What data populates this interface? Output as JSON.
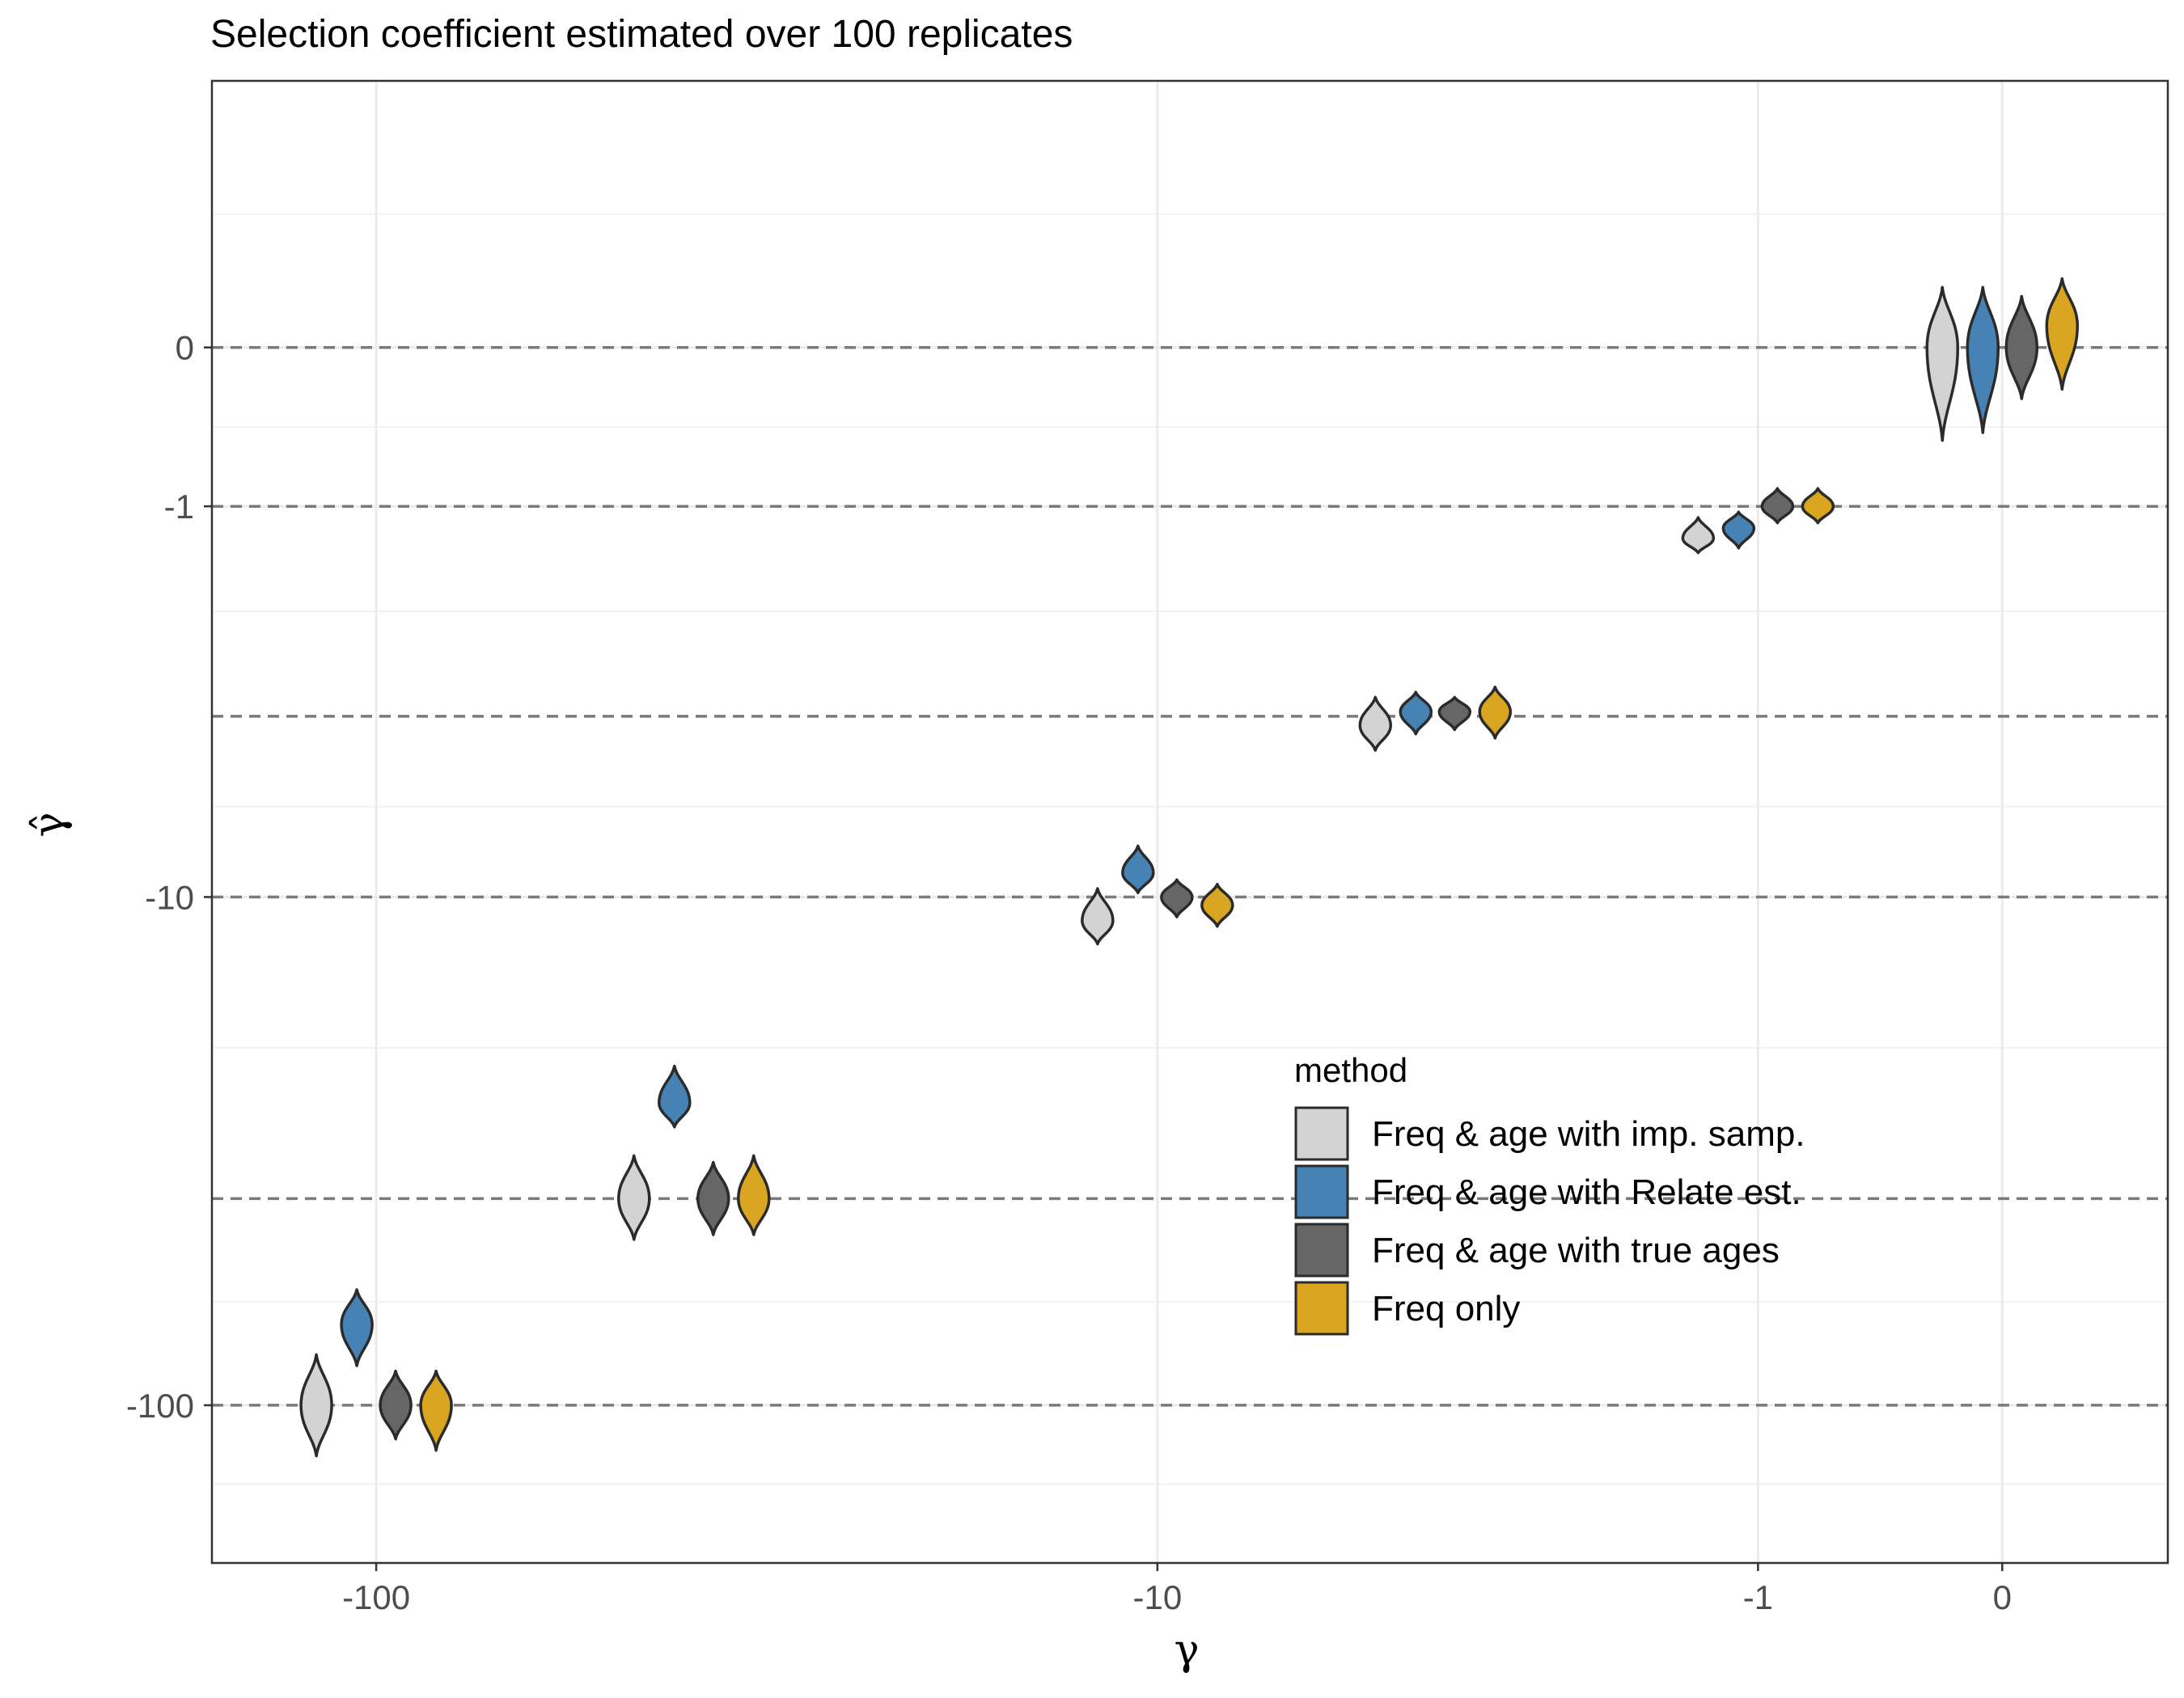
{
  "chart_data": {
    "type": "violin",
    "title": "Selection coefficient estimated over 100 replicates",
    "xlabel": "γ",
    "ylabel": "γ̂",
    "x_scale": "pseudo-log (signed)",
    "y_scale": "pseudo-log (signed)",
    "xlim": [
      -160,
      0.6
    ],
    "ylim": [
      -200,
      2.2
    ],
    "x_ticks": [
      -100,
      -10,
      -1,
      0
    ],
    "x_tick_labels": [
      "-100",
      "-10",
      "-1",
      "0"
    ],
    "y_ticks": [
      0,
      -1,
      -10,
      -100
    ],
    "y_tick_labels": [
      "0",
      "-1",
      "-10",
      "-100"
    ],
    "reference_lines_y": [
      0,
      -1,
      -4,
      -10,
      -40,
      -100
    ],
    "grid": true,
    "legend": {
      "title": "method",
      "placement": "inside-bottom-right",
      "entries": [
        {
          "label": "Freq & age with imp. samp.",
          "color": "#D3D3D3"
        },
        {
          "label": "Freq & age with Relate est.",
          "color": "#4682B4"
        },
        {
          "label": "Freq & age with true ages",
          "color": "#666666"
        },
        {
          "label": "Freq only",
          "color": "#DAA520"
        }
      ]
    },
    "groups": [
      {
        "gamma": -100,
        "series": [
          {
            "method": "Freq & age with imp. samp.",
            "median": -100,
            "q_low": -125,
            "q_high": -80
          },
          {
            "method": "Freq & age with Relate est.",
            "median": -70,
            "q_low": -84,
            "q_high": -60
          },
          {
            "method": "Freq & age with true ages",
            "median": -100,
            "q_low": -116,
            "q_high": -86
          },
          {
            "method": "Freq only",
            "median": -100,
            "q_low": -122,
            "q_high": -86
          }
        ]
      },
      {
        "gamma": -40,
        "series": [
          {
            "method": "Freq & age with imp. samp.",
            "median": -40,
            "q_low": -48,
            "q_high": -33
          },
          {
            "method": "Freq & age with Relate est.",
            "median": -26,
            "q_low": -29,
            "q_high": -22
          },
          {
            "method": "Freq & age with true ages",
            "median": -40,
            "q_low": -47,
            "q_high": -34
          },
          {
            "method": "Freq only",
            "median": -40,
            "q_low": -47,
            "q_high": -33
          }
        ]
      },
      {
        "gamma": -10,
        "series": [
          {
            "method": "Freq & age with imp. samp.",
            "median": -11.2,
            "q_low": -12.5,
            "q_high": -9.6
          },
          {
            "method": "Freq & age with Relate est.",
            "median": -8.9,
            "q_low": -9.8,
            "q_high": -7.8
          },
          {
            "method": "Freq & age with true ages",
            "median": -10,
            "q_low": -11,
            "q_high": -9.2
          },
          {
            "method": "Freq only",
            "median": -10.4,
            "q_low": -11.5,
            "q_high": -9.4
          }
        ]
      },
      {
        "gamma": -4,
        "series": [
          {
            "method": "Freq & age with imp. samp.",
            "median": -4.2,
            "q_low": -4.8,
            "q_high": -3.6
          },
          {
            "method": "Freq & age with Relate est.",
            "median": -3.9,
            "q_low": -4.4,
            "q_high": -3.5
          },
          {
            "method": "Freq & age with true ages",
            "median": -3.9,
            "q_low": -4.3,
            "q_high": -3.6
          },
          {
            "method": "Freq only",
            "median": -3.9,
            "q_low": -4.5,
            "q_high": -3.4
          }
        ]
      },
      {
        "gamma": -1,
        "series": [
          {
            "method": "Freq & age with imp. samp.",
            "median": -1.3,
            "q_low": -1.45,
            "q_high": -1.1
          },
          {
            "method": "Freq & age with Relate est.",
            "median": -1.2,
            "q_low": -1.4,
            "q_high": -1.05
          },
          {
            "method": "Freq & age with true ages",
            "median": -1.0,
            "q_low": -1.15,
            "q_high": -0.85
          },
          {
            "method": "Freq only",
            "median": -1.0,
            "q_low": -1.15,
            "q_high": -0.85
          }
        ]
      },
      {
        "gamma": 0,
        "series": [
          {
            "method": "Freq & age with imp. samp.",
            "median": 0,
            "q_low": -0.5,
            "q_high": 0.3
          },
          {
            "method": "Freq & age with Relate est.",
            "median": 0,
            "q_low": -0.45,
            "q_high": 0.3
          },
          {
            "method": "Freq & age with true ages",
            "median": 0,
            "q_low": -0.25,
            "q_high": 0.25
          },
          {
            "method": "Freq only",
            "median": 0.1,
            "q_low": -0.2,
            "q_high": 0.35
          }
        ]
      }
    ]
  }
}
